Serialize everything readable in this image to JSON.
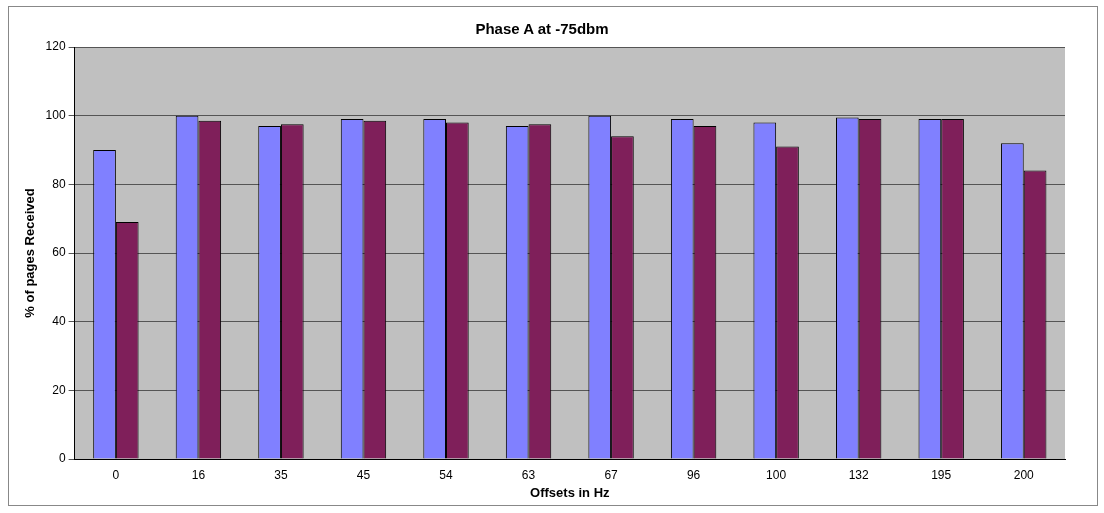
{
  "chart_data": {
    "type": "bar",
    "title": "Phase A at -75dbm",
    "xlabel": "Offsets in Hz",
    "ylabel": "% of pages Received",
    "categories": [
      "0",
      "16",
      "35",
      "45",
      "54",
      "63",
      "67",
      "96",
      "100",
      "132",
      "195",
      "200"
    ],
    "series": [
      {
        "color": "#8080ff",
        "values": [
          90,
          100,
          97,
          99,
          99,
          97,
          100,
          99,
          98,
          99.5,
          99,
          92
        ]
      },
      {
        "color": "#7f1f5a",
        "values": [
          69,
          98.5,
          97.5,
          98.5,
          98,
          97.5,
          94,
          97,
          91,
          99,
          99,
          84
        ]
      }
    ],
    "ylim": [
      0,
      120
    ],
    "yticks": [
      0,
      20,
      40,
      60,
      80,
      100,
      120
    ],
    "grid": "y"
  }
}
